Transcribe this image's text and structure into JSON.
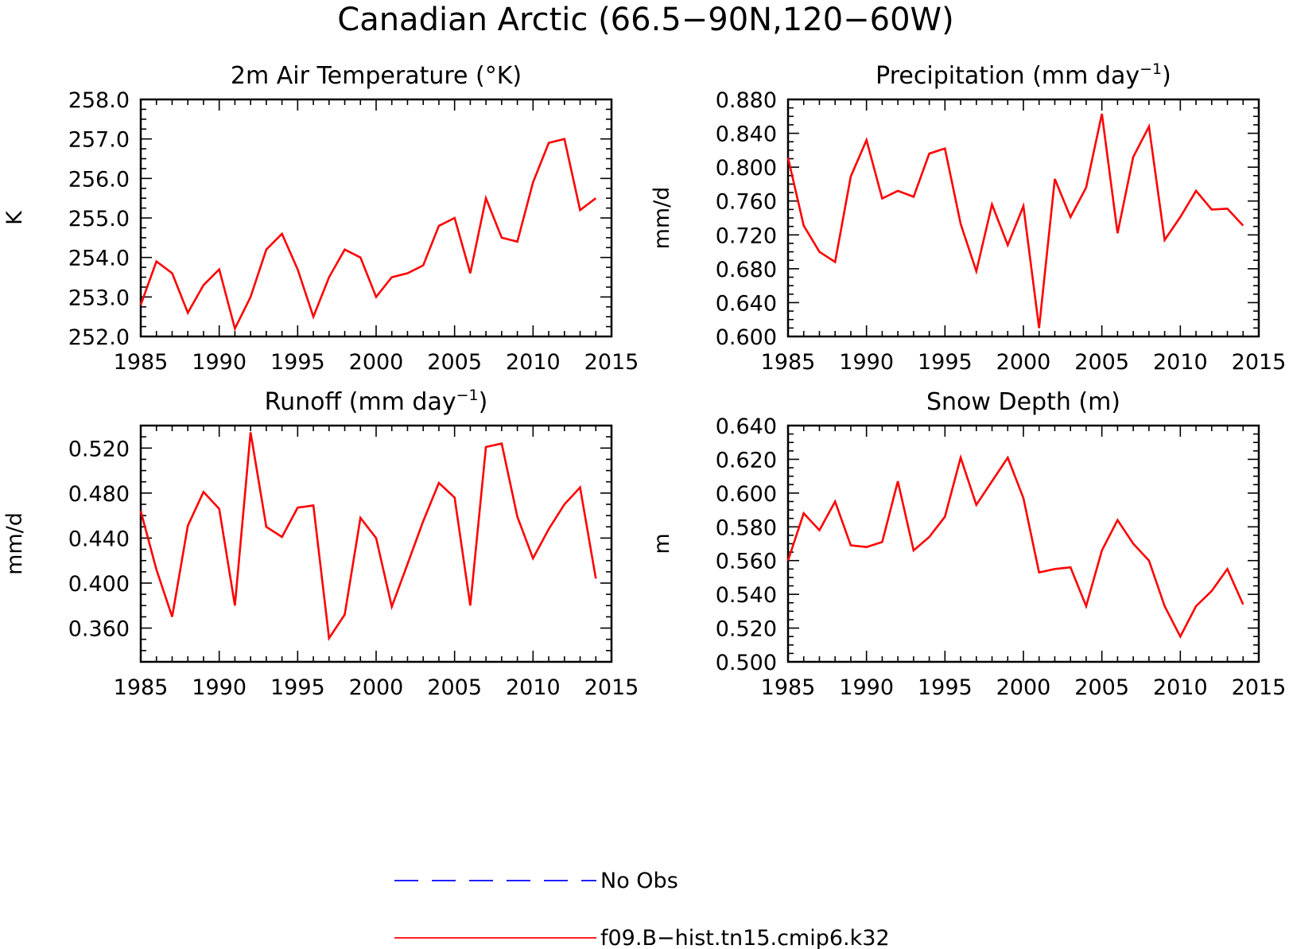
{
  "figure_title": "Canadian Arctic (66.5−90N,120−60W)",
  "chart_data": [
    {
      "type": "line",
      "title": "2m Air Temperature (°K)",
      "ylabel": "K",
      "xlim": [
        1985,
        2015
      ],
      "ylim": [
        252.0,
        258.0
      ],
      "x_ticks": [
        "1985",
        "1990",
        "1995",
        "2000",
        "2005",
        "2010",
        "2015"
      ],
      "y_ticks": [
        "252.0",
        "253.0",
        "254.0",
        "255.0",
        "256.0",
        "257.0",
        "258.0"
      ],
      "x": [
        1985,
        1986,
        1987,
        1988,
        1989,
        1990,
        1991,
        1992,
        1993,
        1994,
        1995,
        1996,
        1997,
        1998,
        1999,
        2000,
        2001,
        2002,
        2003,
        2004,
        2005,
        2006,
        2007,
        2008,
        2009,
        2010,
        2011,
        2012,
        2013,
        2014
      ],
      "series": [
        {
          "name": "f09.B−hist.tn15.cmip6.k32",
          "color": "#ff0000",
          "values": [
            252.8,
            253.9,
            253.6,
            252.6,
            253.3,
            253.7,
            252.2,
            253.0,
            254.2,
            254.6,
            253.7,
            252.5,
            253.5,
            254.2,
            254.0,
            253.0,
            253.5,
            253.6,
            253.8,
            254.8,
            255.0,
            253.6,
            255.5,
            254.5,
            254.4,
            255.9,
            256.9,
            257.0,
            255.2,
            255.5
          ]
        }
      ]
    },
    {
      "type": "line",
      "title": "Precipitation (mm day",
      "title_sup": "−1",
      "title_end": ")",
      "ylabel": "mm/d",
      "xlim": [
        1985,
        2015
      ],
      "ylim": [
        0.6,
        0.88
      ],
      "x_ticks": [
        "1985",
        "1990",
        "1995",
        "2000",
        "2005",
        "2010",
        "2015"
      ],
      "y_ticks": [
        "0.600",
        "0.640",
        "0.680",
        "0.720",
        "0.760",
        "0.800",
        "0.840",
        "0.880"
      ],
      "x": [
        1985,
        1986,
        1987,
        1988,
        1989,
        1990,
        1991,
        1992,
        1993,
        1994,
        1995,
        1996,
        1997,
        1998,
        1999,
        2000,
        2001,
        2002,
        2003,
        2004,
        2005,
        2006,
        2007,
        2008,
        2009,
        2010,
        2011,
        2012,
        2013,
        2014
      ],
      "series": [
        {
          "name": "f09.B−hist.tn15.cmip6.k32",
          "color": "#ff0000",
          "values": [
            0.811,
            0.731,
            0.7,
            0.688,
            0.789,
            0.832,
            0.763,
            0.772,
            0.765,
            0.816,
            0.822,
            0.733,
            0.677,
            0.756,
            0.708,
            0.754,
            0.61,
            0.786,
            0.741,
            0.776,
            0.863,
            0.722,
            0.812,
            0.848,
            0.714,
            0.741,
            0.772,
            0.75,
            0.751,
            0.731
          ]
        }
      ]
    },
    {
      "type": "line",
      "title": "Runoff (mm day",
      "title_sup": "−1",
      "title_end": ")",
      "ylabel": "mm/d",
      "xlim": [
        1985,
        2015
      ],
      "ylim": [
        0.33,
        0.54
      ],
      "x_ticks": [
        "1985",
        "1990",
        "1995",
        "2000",
        "2005",
        "2010",
        "2015"
      ],
      "y_ticks": [
        "0.360",
        "0.400",
        "0.440",
        "0.480",
        "0.520"
      ],
      "x": [
        1985,
        1986,
        1987,
        1988,
        1989,
        1990,
        1991,
        1992,
        1993,
        1994,
        1995,
        1996,
        1997,
        1998,
        1999,
        2000,
        2001,
        2002,
        2003,
        2004,
        2005,
        2006,
        2007,
        2008,
        2009,
        2010,
        2011,
        2012,
        2013,
        2014
      ],
      "series": [
        {
          "name": "f09.B−hist.tn15.cmip6.k32",
          "color": "#ff0000",
          "values": [
            0.464,
            0.412,
            0.37,
            0.451,
            0.481,
            0.466,
            0.38,
            0.534,
            0.45,
            0.441,
            0.467,
            0.469,
            0.351,
            0.372,
            0.458,
            0.44,
            0.379,
            0.417,
            0.455,
            0.489,
            0.476,
            0.38,
            0.521,
            0.524,
            0.459,
            0.422,
            0.448,
            0.47,
            0.485,
            0.404
          ]
        }
      ]
    },
    {
      "type": "line",
      "title": "Snow Depth (m)",
      "ylabel": "m",
      "xlim": [
        1985,
        2015
      ],
      "ylim": [
        0.5,
        0.64
      ],
      "x_ticks": [
        "1985",
        "1990",
        "1995",
        "2000",
        "2005",
        "2010",
        "2015"
      ],
      "y_ticks": [
        "0.500",
        "0.520",
        "0.540",
        "0.560",
        "0.580",
        "0.600",
        "0.620",
        "0.640"
      ],
      "x": [
        1985,
        1986,
        1987,
        1988,
        1989,
        1990,
        1991,
        1992,
        1993,
        1994,
        1995,
        1996,
        1997,
        1998,
        1999,
        2000,
        2001,
        2002,
        2003,
        2004,
        2005,
        2006,
        2007,
        2008,
        2009,
        2010,
        2011,
        2012,
        2013,
        2014
      ],
      "series": [
        {
          "name": "f09.B−hist.tn15.cmip6.k32",
          "color": "#ff0000",
          "values": [
            0.56,
            0.588,
            0.578,
            0.595,
            0.569,
            0.568,
            0.571,
            0.607,
            0.566,
            0.574,
            0.586,
            0.621,
            0.593,
            0.607,
            0.621,
            0.597,
            0.553,
            0.555,
            0.556,
            0.533,
            0.566,
            0.584,
            0.57,
            0.56,
            0.533,
            0.515,
            0.533,
            0.542,
            0.555,
            0.534
          ]
        }
      ]
    }
  ],
  "legend": [
    {
      "label": "No Obs",
      "color": "#0000ff",
      "dash": true
    },
    {
      "label": "f09.B−hist.tn15.cmip6.k32",
      "color": "#ff0000",
      "dash": false
    }
  ]
}
